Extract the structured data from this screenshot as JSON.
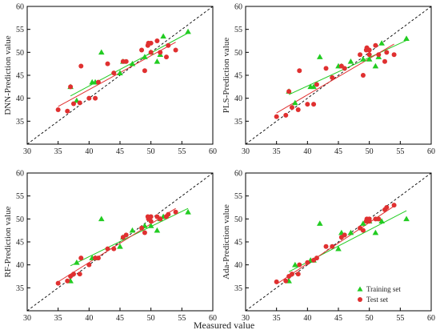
{
  "figure": {
    "common_xlabel": "Measured value"
  },
  "chart_data": [
    {
      "type": "scatter",
      "ylabel": "DNN-Prediction value",
      "xlim": [
        30,
        60
      ],
      "ylim": [
        30,
        60
      ],
      "xticks": [
        30,
        35,
        40,
        45,
        50,
        55,
        60
      ],
      "yticks": [
        35,
        40,
        45,
        50,
        55,
        60
      ],
      "reference_line": "y = x (dashed black)",
      "series": [
        {
          "kind": "training",
          "marker": "triangle",
          "color": "#22cc22",
          "x": [
            37,
            38,
            40.5,
            41,
            42,
            45,
            45.5,
            47,
            49,
            50,
            51,
            51.5,
            52,
            56
          ],
          "y": [
            42.5,
            39.5,
            43.5,
            43.5,
            50,
            45.5,
            48,
            47.5,
            49,
            50,
            48,
            49.5,
            53.5,
            54.5
          ]
        },
        {
          "kind": "test",
          "marker": "circle",
          "color": "#e03030",
          "x": [
            35,
            36.5,
            37,
            37.5,
            38.5,
            38.7,
            40,
            41,
            41.5,
            43,
            44,
            45.5,
            46,
            48.5,
            49,
            49.5,
            49.6,
            50,
            50,
            51,
            51.5,
            52.5,
            52.8,
            54
          ],
          "y": [
            37.5,
            37.2,
            42.5,
            38.8,
            39,
            47,
            40,
            40,
            43.5,
            47.5,
            45.5,
            48,
            48,
            50.5,
            46,
            51.5,
            52,
            52,
            50,
            52.5,
            50,
            49,
            51.5,
            50.5
          ]
        }
      ],
      "fits": [
        {
          "kind": "training",
          "color": "#22cc22",
          "x": [
            37,
            56
          ],
          "y": [
            40.5,
            54.2
          ]
        },
        {
          "kind": "test",
          "color": "#e03030",
          "x": [
            35,
            54
          ],
          "y": [
            38.2,
            52.2
          ]
        }
      ]
    },
    {
      "type": "scatter",
      "ylabel": "PLS-Prediction value",
      "xlim": [
        30,
        60
      ],
      "ylim": [
        30,
        60
      ],
      "xticks": [
        30,
        35,
        40,
        45,
        50,
        55,
        60
      ],
      "yticks": [
        35,
        40,
        45,
        50,
        55,
        60
      ],
      "reference_line": "y = x (dashed black)",
      "series": [
        {
          "kind": "training",
          "marker": "triangle",
          "color": "#22cc22",
          "x": [
            37,
            38,
            40.5,
            41,
            42,
            45,
            45.5,
            47,
            49,
            50,
            51,
            51.5,
            52,
            56
          ],
          "y": [
            41.5,
            39,
            42.5,
            42.5,
            49,
            47,
            47,
            48,
            48.5,
            48.5,
            47,
            49,
            52,
            53
          ]
        },
        {
          "kind": "test",
          "marker": "circle",
          "color": "#e03030",
          "x": [
            35,
            36.5,
            37,
            37.5,
            38.5,
            38.7,
            40,
            41,
            41.5,
            43,
            44,
            45.5,
            46,
            48.5,
            49,
            49.5,
            49.6,
            50,
            50,
            51,
            51.5,
            52.5,
            52.8,
            54
          ],
          "y": [
            36,
            36.3,
            41.5,
            38,
            37.5,
            46,
            38.7,
            38.7,
            43,
            46.5,
            44.5,
            47,
            46.5,
            49.5,
            45,
            50.5,
            51,
            50.5,
            49.5,
            51.5,
            49.5,
            48,
            50,
            49.5
          ]
        }
      ],
      "fits": [
        {
          "kind": "training",
          "color": "#22cc22",
          "x": [
            37,
            56
          ],
          "y": [
            40.8,
            52.6
          ]
        },
        {
          "kind": "test",
          "color": "#e03030",
          "x": [
            35,
            54
          ],
          "y": [
            36.8,
            51.8
          ]
        }
      ]
    },
    {
      "type": "scatter",
      "ylabel": "RF-Prediction value",
      "xlim": [
        30,
        60
      ],
      "ylim": [
        30,
        60
      ],
      "xticks": [
        30,
        35,
        40,
        45,
        50,
        55,
        60
      ],
      "yticks": [
        35,
        40,
        45,
        50,
        55,
        60
      ],
      "reference_line": "y = x (dashed black)",
      "series": [
        {
          "kind": "training",
          "marker": "triangle",
          "color": "#22cc22",
          "x": [
            37,
            38,
            40.5,
            41,
            42,
            45,
            45.5,
            47,
            49,
            50,
            51,
            51.5,
            52,
            56
          ],
          "y": [
            36.5,
            40.5,
            41.5,
            41.5,
            50,
            44,
            46,
            47.5,
            48.5,
            48.5,
            47.5,
            50,
            50.5,
            51.5
          ]
        },
        {
          "kind": "test",
          "marker": "circle",
          "color": "#e03030",
          "x": [
            35,
            36.5,
            37,
            37.5,
            38.5,
            38.7,
            40,
            41,
            41.5,
            43,
            44,
            45.5,
            46,
            48.5,
            49,
            49.5,
            49.6,
            50,
            50,
            51,
            51.5,
            52.5,
            52.8,
            54
          ],
          "y": [
            36,
            36.5,
            37.5,
            38,
            38,
            41.5,
            40,
            41.5,
            41.5,
            43.5,
            43.5,
            46,
            46.5,
            48,
            47,
            50.5,
            50,
            50.5,
            49.5,
            50.5,
            50,
            50.5,
            51,
            51.5
          ]
        }
      ],
      "fits": [
        {
          "kind": "training",
          "color": "#22cc22",
          "x": [
            37,
            56
          ],
          "y": [
            39.8,
            52.3
          ]
        },
        {
          "kind": "test",
          "color": "#e03030",
          "x": [
            35,
            54
          ],
          "y": [
            36.3,
            52.3
          ]
        }
      ]
    },
    {
      "type": "scatter",
      "ylabel": "Ada-Prediction value",
      "xlim": [
        30,
        60
      ],
      "ylim": [
        30,
        60
      ],
      "xticks": [
        30,
        35,
        40,
        45,
        50,
        55,
        60
      ],
      "yticks": [
        35,
        40,
        45,
        50,
        55,
        60
      ],
      "reference_line": "y = x (dashed black)",
      "legend": {
        "position": "bottom-right",
        "entries": [
          "Training set",
          "Test set"
        ]
      },
      "series": [
        {
          "kind": "training",
          "name": "Training set",
          "marker": "triangle",
          "color": "#22cc22",
          "x": [
            37,
            38,
            40.5,
            41,
            42,
            45,
            45.5,
            47,
            49,
            50,
            51,
            51.5,
            52,
            56
          ],
          "y": [
            36.5,
            40,
            41,
            41,
            49,
            43.5,
            47,
            47,
            49,
            49.5,
            47,
            50,
            49.5,
            50
          ]
        },
        {
          "kind": "test",
          "name": "Test set",
          "marker": "circle",
          "color": "#e03030",
          "x": [
            35,
            36.5,
            37,
            37.5,
            38.5,
            38.7,
            40,
            41,
            41.5,
            43,
            44,
            45.5,
            46,
            48.5,
            49,
            49.5,
            49.6,
            50,
            50,
            51,
            51.5,
            52.5,
            52.8,
            54
          ],
          "y": [
            36.3,
            36.5,
            37.5,
            38,
            38,
            40,
            40.5,
            41,
            41.5,
            44,
            44,
            46,
            46.5,
            48,
            47.5,
            49.5,
            50,
            50,
            49.5,
            50,
            50,
            52,
            52.5,
            53
          ]
        }
      ],
      "fits": [
        {
          "kind": "training",
          "color": "#22cc22",
          "x": [
            37,
            56
          ],
          "y": [
            38.5,
            51.8
          ]
        },
        {
          "kind": "test",
          "color": "#e03030",
          "x": [
            35,
            54
          ],
          "y": [
            35.8,
            52.8
          ]
        }
      ]
    }
  ]
}
